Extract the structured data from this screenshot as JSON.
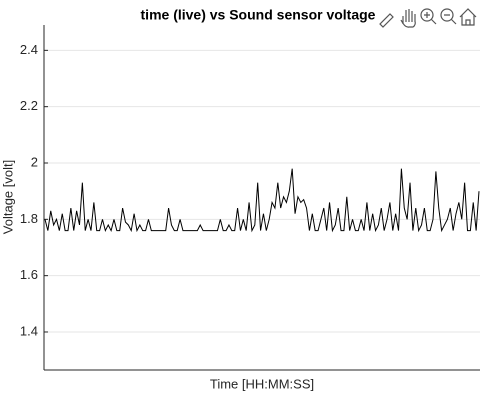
{
  "chart_data": {
    "type": "line",
    "title": "time (live) vs Sound sensor voltage",
    "xlabel": "Time [HH:MM:SS]",
    "ylabel": "Voltage [volt]",
    "ylim": [
      1.265,
      2.49
    ],
    "yticks": [
      1.4,
      1.6,
      1.8,
      2,
      2.2,
      2.4
    ],
    "grid": true,
    "color": "#000000",
    "values": [
      1.8,
      1.76,
      1.83,
      1.78,
      1.8,
      1.76,
      1.82,
      1.76,
      1.76,
      1.84,
      1.76,
      1.83,
      1.78,
      1.93,
      1.76,
      1.8,
      1.76,
      1.86,
      1.76,
      1.76,
      1.8,
      1.76,
      1.78,
      1.76,
      1.8,
      1.76,
      1.76,
      1.84,
      1.79,
      1.78,
      1.76,
      1.82,
      1.76,
      1.78,
      1.76,
      1.76,
      1.8,
      1.76,
      1.76,
      1.76,
      1.76,
      1.76,
      1.76,
      1.84,
      1.78,
      1.76,
      1.76,
      1.8,
      1.76,
      1.76,
      1.76,
      1.76,
      1.76,
      1.76,
      1.78,
      1.76,
      1.76,
      1.76,
      1.76,
      1.76,
      1.76,
      1.8,
      1.76,
      1.76,
      1.78,
      1.76,
      1.76,
      1.84,
      1.76,
      1.8,
      1.76,
      1.86,
      1.76,
      1.78,
      1.93,
      1.76,
      1.82,
      1.76,
      1.8,
      1.86,
      1.84,
      1.93,
      1.84,
      1.88,
      1.86,
      1.9,
      1.98,
      1.82,
      1.88,
      1.86,
      1.87,
      1.84,
      1.76,
      1.82,
      1.76,
      1.76,
      1.8,
      1.84,
      1.76,
      1.86,
      1.76,
      1.78,
      1.84,
      1.76,
      1.76,
      1.88,
      1.76,
      1.8,
      1.76,
      1.76,
      1.8,
      1.76,
      1.86,
      1.76,
      1.82,
      1.76,
      1.78,
      1.84,
      1.76,
      1.8,
      1.86,
      1.76,
      1.82,
      1.76,
      1.98,
      1.84,
      1.8,
      1.93,
      1.76,
      1.84,
      1.76,
      1.78,
      1.84,
      1.76,
      1.76,
      1.8,
      1.97,
      1.84,
      1.76,
      1.78,
      1.8,
      1.84,
      1.76,
      1.82,
      1.86,
      1.8,
      1.93,
      1.76,
      1.76,
      1.86,
      1.76,
      1.9
    ]
  }
}
